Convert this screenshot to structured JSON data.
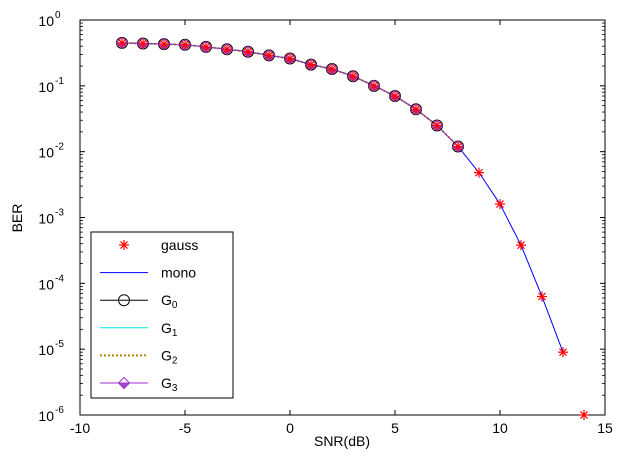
{
  "chart_data": {
    "type": "line",
    "xlabel": "SNR(dB)",
    "ylabel": "BER",
    "xlim": [
      -10,
      15
    ],
    "ylim": [
      1e-06,
      1
    ],
    "yscale": "log",
    "grid": false,
    "legend_position": "bottom-left",
    "x_ticks": [
      -10,
      -5,
      0,
      5,
      10,
      15
    ],
    "x_tick_labels": [
      "-10",
      "-5",
      "0",
      "5",
      "10",
      "15"
    ],
    "y_ticks": [
      1,
      0.1,
      0.01,
      0.001,
      0.0001,
      1e-05,
      1e-06
    ],
    "y_tick_labels": [
      {
        "base": "10",
        "exp": "0"
      },
      {
        "base": "10",
        "exp": "-1"
      },
      {
        "base": "10",
        "exp": "-2"
      },
      {
        "base": "10",
        "exp": "-3"
      },
      {
        "base": "10",
        "exp": "-4"
      },
      {
        "base": "10",
        "exp": "-5"
      },
      {
        "base": "10",
        "exp": "-6"
      }
    ],
    "series": [
      {
        "name": "gauss",
        "color": "#ff0000",
        "marker": "asterisk",
        "line": "none",
        "x": [
          -8,
          -7,
          -6,
          -5,
          -4,
          -3,
          -2,
          -1,
          0,
          1,
          2,
          3,
          4,
          5,
          6,
          7,
          8,
          9,
          10,
          11,
          12,
          13,
          14
        ],
        "y": [
          0.45,
          0.44,
          0.43,
          0.42,
          0.39,
          0.36,
          0.33,
          0.29,
          0.26,
          0.21,
          0.18,
          0.14,
          0.1,
          0.07,
          0.044,
          0.025,
          0.012,
          0.0048,
          0.0016,
          0.00038,
          6.3e-05,
          9e-06,
          1e-06
        ]
      },
      {
        "name": "mono",
        "color": "#0000ff",
        "marker": "none",
        "line": "solid",
        "x": [
          -8,
          -7,
          -6,
          -5,
          -4,
          -3,
          -2,
          -1,
          0,
          1,
          2,
          3,
          4,
          5,
          6,
          7,
          8,
          9,
          10,
          11,
          12,
          13
        ],
        "y": [
          0.45,
          0.44,
          0.43,
          0.42,
          0.39,
          0.36,
          0.33,
          0.29,
          0.26,
          0.21,
          0.18,
          0.14,
          0.1,
          0.07,
          0.044,
          0.025,
          0.012,
          0.0048,
          0.0016,
          0.00038,
          6.3e-05,
          9e-06
        ]
      },
      {
        "name": "G",
        "sub": "0",
        "color": "#000000",
        "marker": "circle",
        "line": "solid",
        "x": [
          -8,
          -7,
          -6,
          -5,
          -4,
          -3,
          -2,
          -1,
          0,
          1,
          2,
          3,
          4,
          5,
          6,
          7,
          8
        ],
        "y": [
          0.45,
          0.44,
          0.43,
          0.42,
          0.39,
          0.36,
          0.33,
          0.29,
          0.26,
          0.21,
          0.18,
          0.14,
          0.1,
          0.07,
          0.044,
          0.025,
          0.012
        ]
      },
      {
        "name": "G",
        "sub": "1",
        "color": "#00e5e5",
        "marker": "none",
        "line": "solid",
        "x": [
          -8,
          -7,
          -6,
          -5,
          -4,
          -3,
          -2,
          -1,
          0,
          1,
          2,
          3,
          4,
          5,
          6,
          7,
          8
        ],
        "y": [
          0.45,
          0.44,
          0.43,
          0.42,
          0.39,
          0.36,
          0.33,
          0.29,
          0.26,
          0.21,
          0.18,
          0.14,
          0.1,
          0.07,
          0.044,
          0.025,
          0.012
        ]
      },
      {
        "name": "G",
        "sub": "2",
        "color": "#b8860b",
        "marker": "none",
        "line": "dotted",
        "x": [
          -8,
          -7,
          -6,
          -5,
          -4,
          -3,
          -2,
          -1,
          0,
          1,
          2,
          3,
          4,
          5,
          6,
          7,
          8
        ],
        "y": [
          0.45,
          0.44,
          0.43,
          0.42,
          0.39,
          0.36,
          0.33,
          0.29,
          0.26,
          0.21,
          0.18,
          0.14,
          0.1,
          0.07,
          0.044,
          0.025,
          0.012
        ]
      },
      {
        "name": "G",
        "sub": "3",
        "color": "#9932cc",
        "marker": "diamond",
        "line": "solid",
        "x": [
          -8,
          -7,
          -6,
          -5,
          -4,
          -3,
          -2,
          -1,
          0,
          1,
          2,
          3,
          4,
          5,
          6,
          7,
          8
        ],
        "y": [
          0.45,
          0.44,
          0.43,
          0.42,
          0.39,
          0.36,
          0.33,
          0.29,
          0.26,
          0.21,
          0.18,
          0.14,
          0.1,
          0.07,
          0.044,
          0.025,
          0.012
        ]
      }
    ]
  }
}
